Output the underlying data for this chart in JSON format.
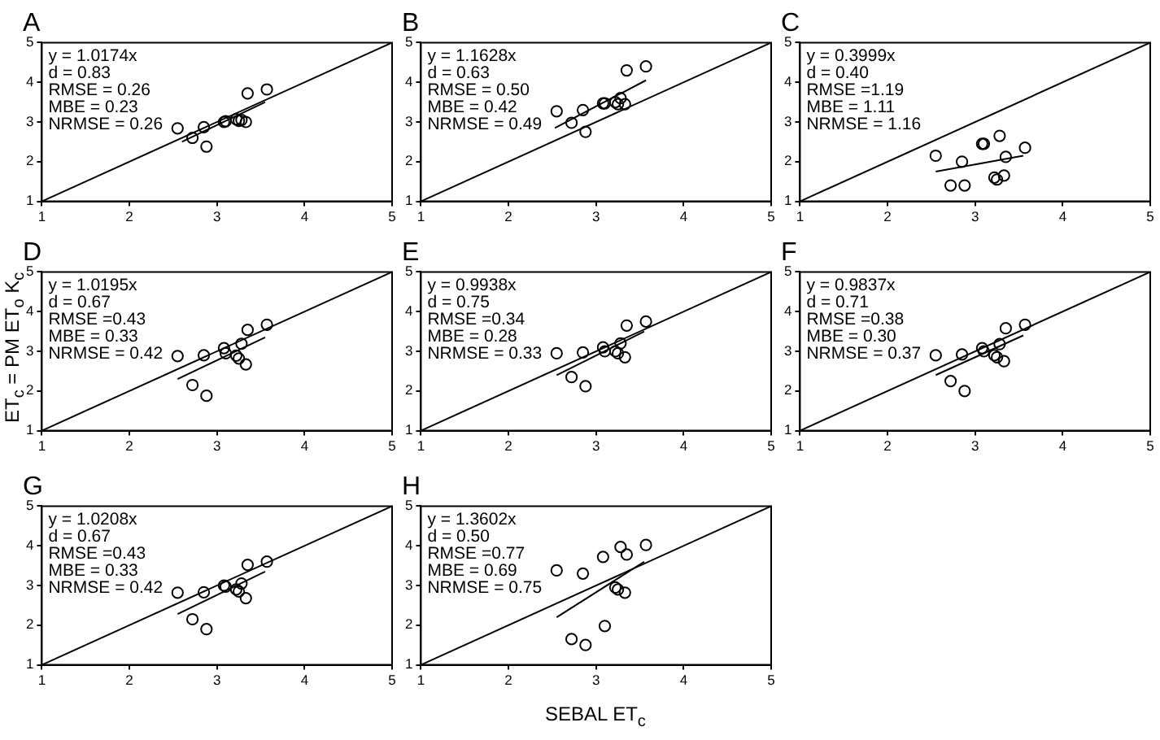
{
  "chart_data": [
    {
      "type": "scatter",
      "title": "A",
      "grid": false,
      "legend": false,
      "xlim": [
        1,
        5
      ],
      "ylim": [
        1,
        5
      ],
      "xticks": [
        1,
        2,
        3,
        4,
        5
      ],
      "yticks": [
        1,
        2,
        3,
        4,
        5
      ],
      "annotations": [
        "y = 1.0174x",
        "d = 0.83",
        "RMSE = 0.26",
        "MBE = 0.23",
        "NRMSE = 0.26"
      ],
      "series": [
        {
          "type": "scatter",
          "marker": "circle",
          "color": "#000000",
          "x": [
            2.55,
            2.72,
            2.85,
            2.88,
            3.08,
            3.1,
            3.22,
            3.25,
            3.28,
            3.33,
            3.35,
            3.57
          ],
          "values": [
            2.84,
            2.6,
            2.87,
            2.38,
            3.0,
            3.02,
            3.07,
            3.03,
            3.05,
            3.0,
            3.72,
            3.82
          ]
        },
        {
          "type": "line",
          "color": "#000000",
          "x": [
            1,
            5
          ],
          "values": [
            1,
            5
          ]
        },
        {
          "type": "line",
          "color": "#000000",
          "x": [
            2.6,
            3.55
          ],
          "values": [
            2.5,
            3.5
          ]
        }
      ]
    },
    {
      "type": "scatter",
      "title": "B",
      "grid": false,
      "legend": false,
      "xlim": [
        1,
        5
      ],
      "ylim": [
        1,
        5
      ],
      "xticks": [
        1,
        2,
        3,
        4,
        5
      ],
      "yticks": [
        1,
        2,
        3,
        4,
        5
      ],
      "annotations": [
        "y = 1.1628x",
        "d = 0.63",
        "RMSE = 0.50",
        "MBE = 0.42",
        "NRMSE = 0.49"
      ],
      "series": [
        {
          "type": "scatter",
          "marker": "circle",
          "color": "#000000",
          "x": [
            2.55,
            2.72,
            2.85,
            2.88,
            3.08,
            3.1,
            3.22,
            3.25,
            3.28,
            3.33,
            3.35,
            3.57
          ],
          "values": [
            3.27,
            2.98,
            3.3,
            2.75,
            3.47,
            3.47,
            3.5,
            3.45,
            3.6,
            3.45,
            4.3,
            4.4
          ]
        },
        {
          "type": "line",
          "color": "#000000",
          "x": [
            1,
            5
          ],
          "values": [
            1,
            5
          ]
        },
        {
          "type": "line",
          "color": "#000000",
          "x": [
            2.53,
            3.57
          ],
          "values": [
            2.85,
            4.05
          ]
        }
      ]
    },
    {
      "type": "scatter",
      "title": "C",
      "grid": false,
      "legend": false,
      "xlim": [
        1,
        5
      ],
      "ylim": [
        1,
        5
      ],
      "xticks": [
        1,
        2,
        3,
        4,
        5
      ],
      "yticks": [
        1,
        2,
        3,
        4,
        5
      ],
      "annotations": [
        "y = 0.3999x",
        "d = 0.40",
        "RMSE =1.19",
        "MBE = 1.11",
        "NRMSE = 1.16"
      ],
      "series": [
        {
          "type": "scatter",
          "marker": "circle",
          "color": "#000000",
          "x": [
            2.55,
            2.72,
            2.85,
            2.88,
            3.08,
            3.1,
            3.22,
            3.25,
            3.28,
            3.33,
            3.35,
            3.57
          ],
          "values": [
            2.15,
            1.4,
            2.0,
            1.4,
            2.45,
            2.45,
            1.6,
            1.55,
            2.65,
            1.65,
            2.12,
            2.35
          ]
        },
        {
          "type": "line",
          "color": "#000000",
          "x": [
            1,
            5
          ],
          "values": [
            1,
            5
          ]
        },
        {
          "type": "line",
          "color": "#000000",
          "x": [
            2.55,
            3.55
          ],
          "values": [
            1.75,
            2.15
          ]
        }
      ]
    },
    {
      "type": "scatter",
      "title": "D",
      "ylabel": "ET$_{c}$ = PM ET$_{o}$ K$_{c}$",
      "grid": false,
      "legend": false,
      "xlim": [
        1,
        5
      ],
      "ylim": [
        1,
        5
      ],
      "xticks": [
        1,
        2,
        3,
        4,
        5
      ],
      "yticks": [
        1,
        2,
        3,
        4,
        5
      ],
      "annotations": [
        "y = 1.0195x",
        "d = 0.67",
        "RMSE =0.43",
        "MBE = 0.33",
        "NRMSE = 0.42"
      ],
      "series": [
        {
          "type": "scatter",
          "marker": "circle",
          "color": "#000000",
          "x": [
            2.55,
            2.72,
            2.85,
            2.88,
            3.08,
            3.1,
            3.22,
            3.25,
            3.28,
            3.33,
            3.35,
            3.57
          ],
          "values": [
            2.88,
            2.15,
            2.9,
            1.88,
            3.08,
            2.95,
            2.89,
            2.82,
            3.19,
            2.67,
            3.54,
            3.67
          ]
        },
        {
          "type": "line",
          "color": "#000000",
          "x": [
            1,
            5
          ],
          "values": [
            1,
            5
          ]
        },
        {
          "type": "line",
          "color": "#000000",
          "x": [
            2.55,
            3.55
          ],
          "values": [
            2.3,
            3.35
          ]
        }
      ]
    },
    {
      "type": "scatter",
      "title": "E",
      "grid": false,
      "legend": false,
      "xlim": [
        1,
        5
      ],
      "ylim": [
        1,
        5
      ],
      "xticks": [
        1,
        2,
        3,
        4,
        5
      ],
      "yticks": [
        1,
        2,
        3,
        4,
        5
      ],
      "annotations": [
        "y = 0.9938x",
        "d = 0.75",
        "RMSE =0.34",
        "MBE = 0.28",
        "NRMSE = 0.33"
      ],
      "series": [
        {
          "type": "scatter",
          "marker": "circle",
          "color": "#000000",
          "x": [
            2.55,
            2.72,
            2.85,
            2.88,
            3.08,
            3.1,
            3.22,
            3.25,
            3.28,
            3.33,
            3.35,
            3.57
          ],
          "values": [
            2.95,
            2.35,
            2.97,
            2.12,
            3.1,
            3.0,
            3.0,
            2.95,
            3.2,
            2.85,
            3.65,
            3.75
          ]
        },
        {
          "type": "line",
          "color": "#000000",
          "x": [
            1,
            5
          ],
          "values": [
            1,
            5
          ]
        },
        {
          "type": "line",
          "color": "#000000",
          "x": [
            2.55,
            3.55
          ],
          "values": [
            2.4,
            3.5
          ]
        }
      ]
    },
    {
      "type": "scatter",
      "title": "F",
      "grid": false,
      "legend": false,
      "xlim": [
        1,
        5
      ],
      "ylim": [
        1,
        5
      ],
      "xticks": [
        1,
        2,
        3,
        4,
        5
      ],
      "yticks": [
        1,
        2,
        3,
        4,
        5
      ],
      "annotations": [
        "y = 0.9837x",
        "d = 0.71",
        "RMSE =0.38",
        "MBE = 0.30",
        "NRMSE = 0.37"
      ],
      "series": [
        {
          "type": "scatter",
          "marker": "circle",
          "color": "#000000",
          "x": [
            2.55,
            2.72,
            2.85,
            2.88,
            3.08,
            3.1,
            3.22,
            3.25,
            3.28,
            3.33,
            3.35,
            3.57
          ],
          "values": [
            2.9,
            2.25,
            2.92,
            2.0,
            3.08,
            3.0,
            2.9,
            2.85,
            3.18,
            2.75,
            3.58,
            3.67
          ]
        },
        {
          "type": "line",
          "color": "#000000",
          "x": [
            1,
            5
          ],
          "values": [
            1,
            5
          ]
        },
        {
          "type": "line",
          "color": "#000000",
          "x": [
            2.55,
            3.55
          ],
          "values": [
            2.4,
            3.4
          ]
        }
      ]
    },
    {
      "type": "scatter",
      "title": "G",
      "grid": false,
      "legend": false,
      "xlim": [
        1,
        5
      ],
      "ylim": [
        1,
        5
      ],
      "xticks": [
        1,
        2,
        3,
        4,
        5
      ],
      "yticks": [
        1,
        2,
        3,
        4,
        5
      ],
      "annotations": [
        "y = 1.0208x",
        "d = 0.67",
        "RMSE =0.43",
        "MBE = 0.33",
        "NRMSE = 0.42"
      ],
      "series": [
        {
          "type": "scatter",
          "marker": "circle",
          "color": "#000000",
          "x": [
            2.55,
            2.72,
            2.85,
            2.88,
            3.08,
            3.1,
            3.22,
            3.25,
            3.28,
            3.33,
            3.35,
            3.57
          ],
          "values": [
            2.82,
            2.15,
            2.83,
            1.9,
            3.0,
            2.97,
            2.9,
            2.85,
            3.05,
            2.68,
            3.52,
            3.6
          ]
        },
        {
          "type": "line",
          "color": "#000000",
          "x": [
            1,
            5
          ],
          "values": [
            1,
            5
          ]
        },
        {
          "type": "line",
          "color": "#000000",
          "x": [
            2.55,
            3.55
          ],
          "values": [
            2.28,
            3.35
          ]
        }
      ]
    },
    {
      "type": "scatter",
      "title": "H",
      "xlabel": "SEBAL ET$_{c}$",
      "grid": false,
      "legend": false,
      "xlim": [
        1,
        5
      ],
      "ylim": [
        1,
        5
      ],
      "xticks": [
        1,
        2,
        3,
        4,
        5
      ],
      "yticks": [
        1,
        2,
        3,
        4,
        5
      ],
      "annotations": [
        "y = 1.3602x",
        "d = 0.50",
        "RMSE =0.77",
        "MBE = 0.69",
        "NRMSE = 0.75"
      ],
      "series": [
        {
          "type": "scatter",
          "marker": "circle",
          "color": "#000000",
          "x": [
            2.55,
            2.72,
            2.85,
            2.88,
            3.08,
            3.1,
            3.22,
            3.25,
            3.28,
            3.33,
            3.35,
            3.57
          ],
          "values": [
            3.38,
            1.65,
            3.3,
            1.5,
            3.72,
            1.98,
            2.95,
            2.9,
            3.97,
            2.82,
            3.78,
            4.02
          ]
        },
        {
          "type": "line",
          "color": "#000000",
          "x": [
            1,
            5
          ],
          "values": [
            1,
            5
          ]
        },
        {
          "type": "line",
          "color": "#000000",
          "x": [
            2.55,
            3.55
          ],
          "values": [
            2.2,
            3.6
          ]
        }
      ]
    }
  ]
}
